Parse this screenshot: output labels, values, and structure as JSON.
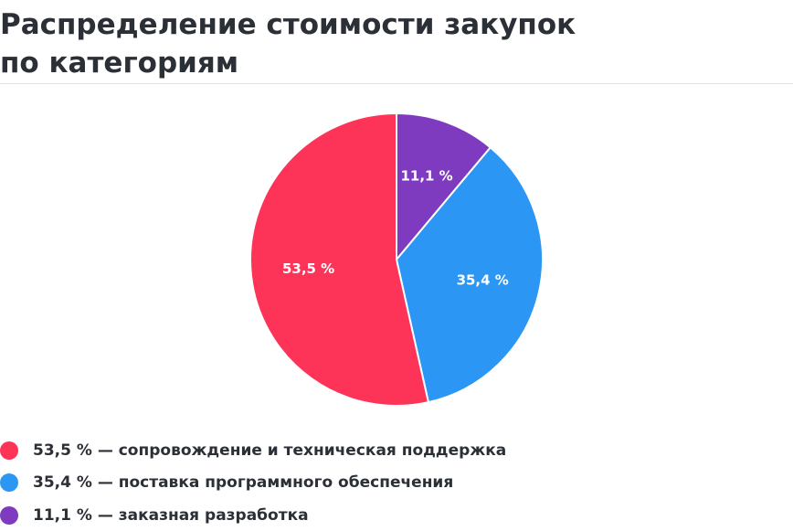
{
  "header": {
    "title_line1": "Распределение стоимости закупок",
    "title_line2": "по категориям"
  },
  "chart_data": {
    "type": "pie",
    "title": "Распределение стоимости закупок по категориям",
    "start_angle_deg": 0,
    "direction": "clockwise",
    "slices": [
      {
        "label": "заказная разработка",
        "value": 11.1,
        "display": "11,1 %",
        "color": "#7e3bbf"
      },
      {
        "label": "поставка программного обеспечения",
        "value": 35.4,
        "display": "35,4 %",
        "color": "#2b96f3"
      },
      {
        "label": "сопровождение и техническая поддержка",
        "value": 53.5,
        "display": "53,5 %",
        "color": "#fe3358"
      }
    ]
  },
  "legend": [
    {
      "text": "53,5 % — сопровождение и техническая поддержка",
      "color": "#fe3358"
    },
    {
      "text": "35,4 % — поставка программного обеспечения",
      "color": "#2b96f3"
    },
    {
      "text": "11,1 % — заказная разработка",
      "color": "#7e3bbf"
    }
  ]
}
